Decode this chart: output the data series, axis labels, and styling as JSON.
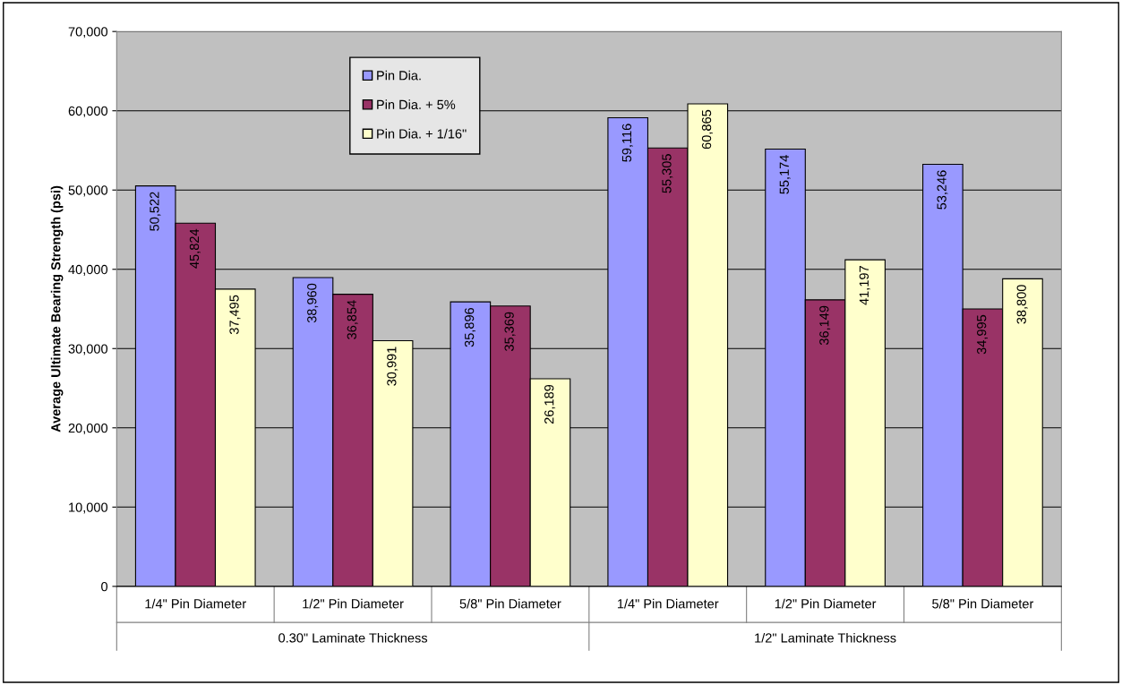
{
  "chart_data": {
    "type": "bar",
    "ylabel": "Average Ultimate Bearing Strength (psi)",
    "categories": [
      "1/4\" Pin Diameter",
      "1/2\" Pin Diameter",
      "5/8\" Pin Diameter",
      "1/4\" Pin Diameter",
      "1/2\" Pin Diameter",
      "5/8\" Pin Diameter"
    ],
    "series": [
      {
        "name": "Pin Dia.",
        "color": "#9999ff",
        "values": [
          50522,
          38960,
          35896,
          59116,
          55174,
          53246
        ],
        "value_labels": [
          "50,522",
          "38,960",
          "35,896",
          "59,116",
          "55,174",
          "53,246"
        ]
      },
      {
        "name": "Pin Dia. + 5%",
        "color": "#993366",
        "values": [
          45824,
          36854,
          35369,
          55305,
          36149,
          34995
        ],
        "value_labels": [
          "45,824",
          "36,854",
          "35,369",
          "55,305",
          "36,149",
          "34,995"
        ]
      },
      {
        "name": "Pin Dia. + 1/16\"",
        "color": "#ffffcc",
        "values": [
          37495,
          30991,
          26189,
          60865,
          41197,
          38800
        ],
        "value_labels": [
          "37,495",
          "30,991",
          "26,189",
          "60,865",
          "41,197",
          "38,800"
        ]
      }
    ],
    "annotations": [
      "0.30\" Laminate Thickness",
      "1/2\" Laminate Thickness"
    ],
    "ylim": [
      0,
      70000
    ],
    "yticks": [
      {
        "value": 0,
        "label": "0"
      },
      {
        "value": 10000,
        "label": "10,000"
      },
      {
        "value": 20000,
        "label": "20,000"
      },
      {
        "value": 30000,
        "label": "30,000"
      },
      {
        "value": 40000,
        "label": "40,000"
      },
      {
        "value": 50000,
        "label": "50,000"
      },
      {
        "value": 60000,
        "label": "60,000"
      },
      {
        "value": 70000,
        "label": "70,000"
      }
    ],
    "grid": "y",
    "legend": "top left"
  }
}
